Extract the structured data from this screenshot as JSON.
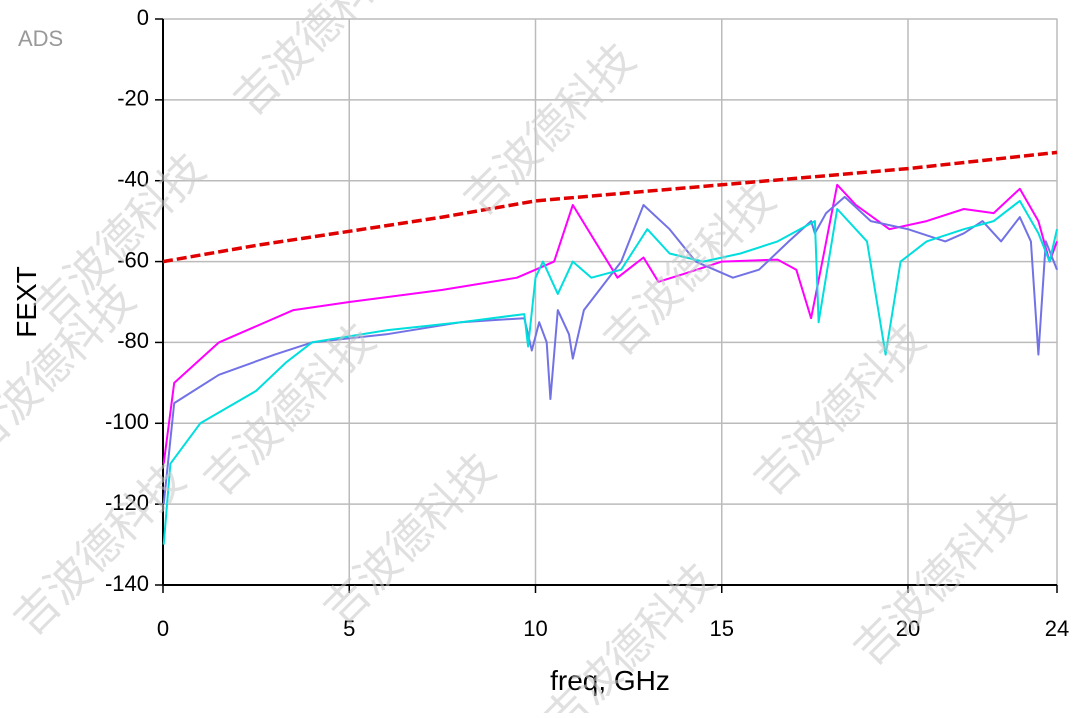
{
  "chart_data": {
    "type": "line",
    "tool_label": "ADS",
    "watermark": "吉波德科技",
    "xlabel": "freq, GHz",
    "ylabel": "FEXT",
    "xlim": [
      0,
      24
    ],
    "xticks": [
      0,
      5,
      10,
      15,
      20,
      24
    ],
    "ylim": [
      -140,
      0
    ],
    "yticks": [
      0,
      -20,
      -40,
      -60,
      -80,
      -100,
      -120,
      -140
    ],
    "grid": true,
    "series": [
      {
        "color": "#e00000",
        "dashed": true,
        "x": [
          0,
          2.5,
          5,
          7.5,
          10,
          12.5,
          15,
          17.5,
          20,
          22,
          24
        ],
        "values": [
          -60,
          -56,
          -52.5,
          -49,
          -45,
          -43,
          -41,
          -39,
          -37,
          -35,
          -33
        ]
      },
      {
        "color": "#ff00ff",
        "dashed": false,
        "x": [
          0.02,
          0.3,
          1.5,
          3.5,
          5,
          7.5,
          9.5,
          10,
          10.5,
          11.0,
          11.6,
          12.2,
          12.9,
          13.3,
          14,
          15,
          16.5,
          17,
          17.4,
          17.7,
          18.1,
          18.6,
          19.5,
          20.5,
          21.5,
          22.3,
          23,
          23.5,
          23.8,
          24
        ],
        "values": [
          -110,
          -90,
          -80,
          -72,
          -70,
          -67,
          -64,
          -62,
          -60,
          -46,
          -55,
          -64,
          -59,
          -65,
          -63,
          -60,
          -59.5,
          -62,
          -74,
          -60,
          -41,
          -46,
          -52,
          -50,
          -47,
          -48,
          -42,
          -50,
          -60,
          -55
        ]
      },
      {
        "color": "#7272e6",
        "dashed": false,
        "x": [
          0.02,
          0.3,
          1.5,
          3,
          4,
          6,
          8,
          9.7,
          9.9,
          10.1,
          10.3,
          10.4,
          10.6,
          10.9,
          11,
          11.3,
          12.3,
          12.9,
          13.6,
          14.3,
          15.3,
          16,
          16.8,
          17.4,
          17.5,
          17.8,
          18.3,
          19,
          20,
          21,
          21.5,
          22,
          22.5,
          23,
          23.3,
          23.5,
          23.7,
          24
        ],
        "values": [
          -120,
          -95,
          -88,
          -83,
          -80,
          -78,
          -75,
          -74,
          -82,
          -75,
          -80,
          -94,
          -72,
          -78,
          -84,
          -72,
          -60,
          -46,
          -52,
          -60,
          -64,
          -62,
          -55,
          -50,
          -53,
          -48,
          -44,
          -50,
          -52,
          -55,
          -53,
          -50,
          -55,
          -49,
          -55,
          -83,
          -55,
          -62
        ]
      },
      {
        "color": "#00dede",
        "dashed": false,
        "x": [
          0.02,
          0.2,
          1,
          2.5,
          3.3,
          4,
          6,
          8,
          9.7,
          9.8,
          10,
          10.2,
          10.6,
          11,
          11.5,
          12.3,
          13,
          13.6,
          14.5,
          15.5,
          16.5,
          17.5,
          17.6,
          18.1,
          18.9,
          19.4,
          19.8,
          20.5,
          21.5,
          22.3,
          23,
          23.5,
          23.8,
          24
        ],
        "values": [
          -130,
          -110,
          -100,
          -92,
          -85,
          -80,
          -77,
          -75,
          -73,
          -81,
          -64,
          -60,
          -68,
          -60,
          -64,
          -62,
          -52,
          -58,
          -60,
          -58,
          -55,
          -50,
          -75,
          -47,
          -55,
          -83,
          -60,
          -55,
          -52,
          -50,
          -45,
          -53,
          -60,
          -52
        ]
      }
    ]
  }
}
